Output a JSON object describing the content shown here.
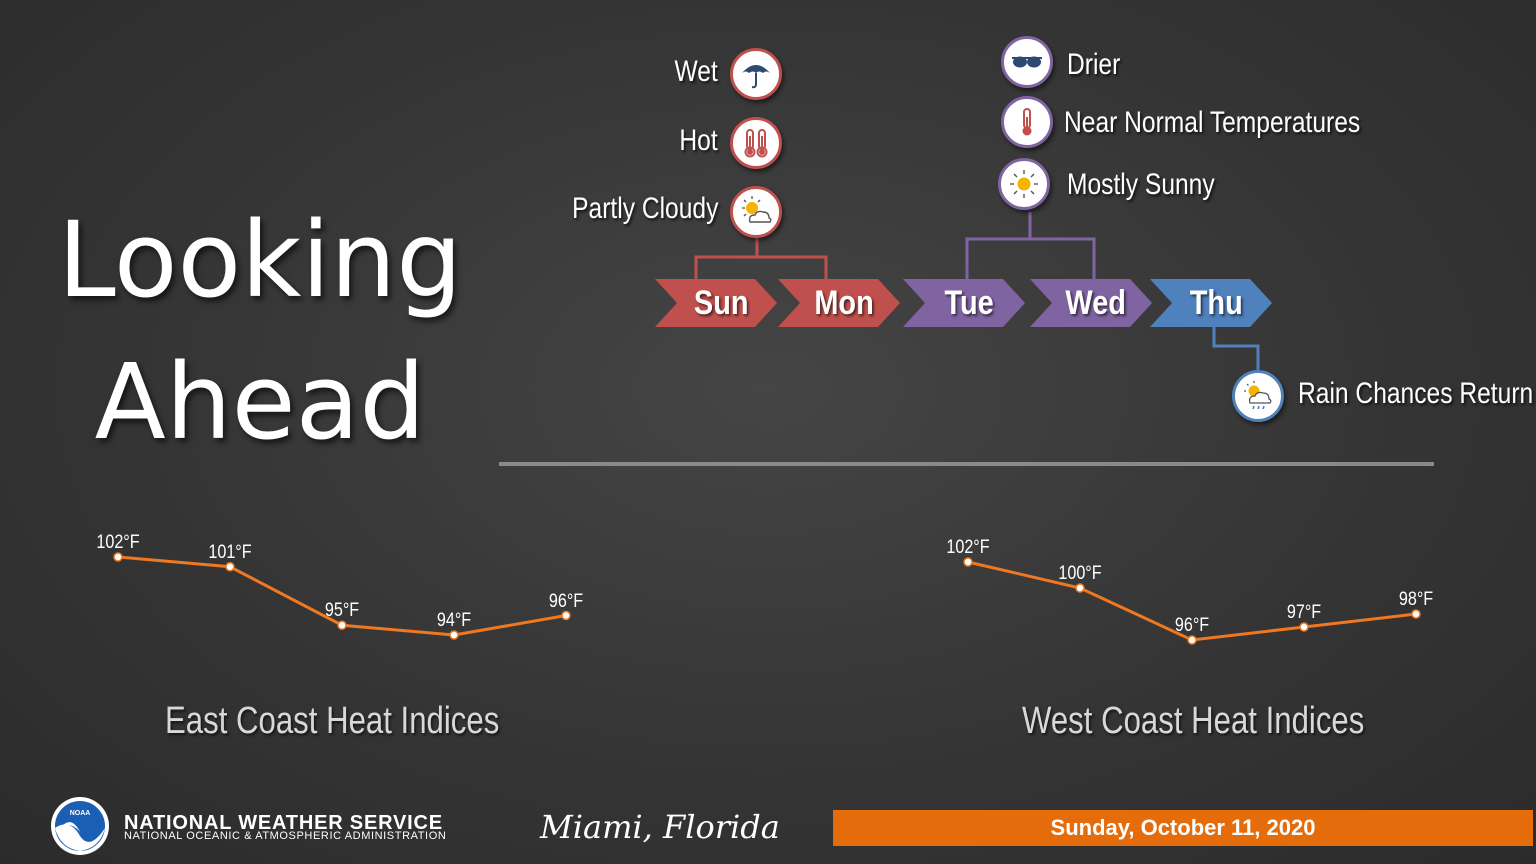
{
  "title": {
    "line1": "Looking",
    "line2": "Ahead"
  },
  "left_conditions": [
    {
      "label": "Wet",
      "icon": "umbrella-icon"
    },
    {
      "label": "Hot",
      "icon": "thermometer-hot-icon"
    },
    {
      "label": "Partly Cloudy",
      "icon": "partly-cloudy-icon"
    }
  ],
  "right_conditions": [
    {
      "label": "Drier",
      "icon": "sunglasses-icon"
    },
    {
      "label": "Near Normal Temperatures",
      "icon": "thermometer-icon"
    },
    {
      "label": "Mostly Sunny",
      "icon": "sun-icon"
    }
  ],
  "thu_condition": {
    "label": "Rain Chances Return",
    "icon": "rain-sun-icon"
  },
  "days": [
    {
      "label": "Sun",
      "color": "#c0504d"
    },
    {
      "label": "Mon",
      "color": "#c0504d"
    },
    {
      "label": "Tue",
      "color": "#8064a2"
    },
    {
      "label": "Wed",
      "color": "#8064a2"
    },
    {
      "label": "Thu",
      "color": "#4f81bd"
    }
  ],
  "chart_data": [
    {
      "type": "line",
      "title": "East Coast Heat Indices",
      "values": [
        102,
        101,
        95,
        94,
        96
      ],
      "labels": [
        "102°F",
        "101°F",
        "95°F",
        "94°F",
        "96°F"
      ],
      "color": "#f07820"
    },
    {
      "type": "line",
      "title": "West Coast Heat Indices",
      "values": [
        102,
        100,
        96,
        97,
        98
      ],
      "labels": [
        "102°F",
        "100°F",
        "96°F",
        "97°F",
        "98°F"
      ],
      "color": "#f07820"
    }
  ],
  "footer": {
    "org_name": "NATIONAL WEATHER SERVICE",
    "org_sub": "NATIONAL OCEANIC & ATMOSPHERIC ADMINISTRATION",
    "logo_text": "NOAA",
    "city": "Miami, Florida",
    "date": "Sunday, October 11, 2020"
  }
}
